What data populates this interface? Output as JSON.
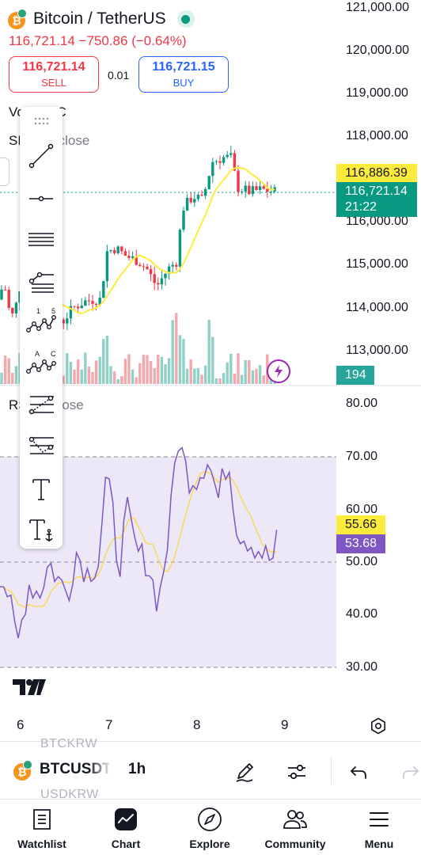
{
  "header": {
    "title": "Bitcoin / TetherUS",
    "price_line": "116,721.14 −750.86 (−0.64%)",
    "sell_price": "116,721.14",
    "sell_label": "SELL",
    "spread": "0.01",
    "buy_price": "116,721.15",
    "buy_label": "BUY"
  },
  "indicators": {
    "vol_prefix": "Vol ·",
    "vol_suffix": "BTC",
    "sma_prefix": "SMA",
    "sma_suffix": "close",
    "rsi_prefix": "RSI",
    "rsi_suffix": "close"
  },
  "price_axis": [
    "121,000.00",
    "120,000.00",
    "119,000.00",
    "118,000.00",
    "116,000.00",
    "115,000.00",
    "114,000.00",
    "113,000.00"
  ],
  "rsi_axis": [
    "80.00",
    "70.00",
    "60.00",
    "50.00",
    "40.00",
    "30.00"
  ],
  "time_axis": [
    "6",
    "7",
    "8",
    "9"
  ],
  "labels": {
    "sma_value": "116,886.39",
    "last_price": "116,721.14",
    "countdown": "21:22",
    "volume": "194",
    "rsi_ma": "55.66",
    "rsi": "53.68"
  },
  "toolbar": {
    "tools": [
      "trend-line",
      "horizontal-ray",
      "parallel-channel",
      "pitchfork",
      "elliott-impulse-wave",
      "abcd-pattern",
      "fib-retracement",
      "fib-extension",
      "text",
      "anchored-text"
    ],
    "wave_labels": [
      "1",
      "5"
    ],
    "abc_labels": [
      "A",
      "C"
    ]
  },
  "symbol_bar": {
    "symbol": "BTCUSDT",
    "timeframe": "1h",
    "prev_symbol": "BTCKRW",
    "next_symbol": "USDKRW"
  },
  "nav": [
    "Watchlist",
    "Chart",
    "Explore",
    "Community",
    "Menu"
  ],
  "colors": {
    "up": "#089981",
    "down": "#f23645",
    "sma": "#ffeb3b",
    "rsi": "#7e57c2",
    "buy": "#2962ff"
  },
  "chart_data": {
    "type": "candlestick",
    "timeframe": "1h",
    "x_ticks": [
      "6",
      "7",
      "8",
      "9"
    ],
    "price_range": [
      112700,
      121300
    ],
    "rsi_range": [
      30,
      80
    ],
    "rsi_bands": [
      70,
      50,
      30
    ],
    "last_price": 116721.14,
    "sma_last": 116886.39,
    "rsi_last": 53.68,
    "rsi_ma_last": 55.66,
    "volume_last": 194
  }
}
